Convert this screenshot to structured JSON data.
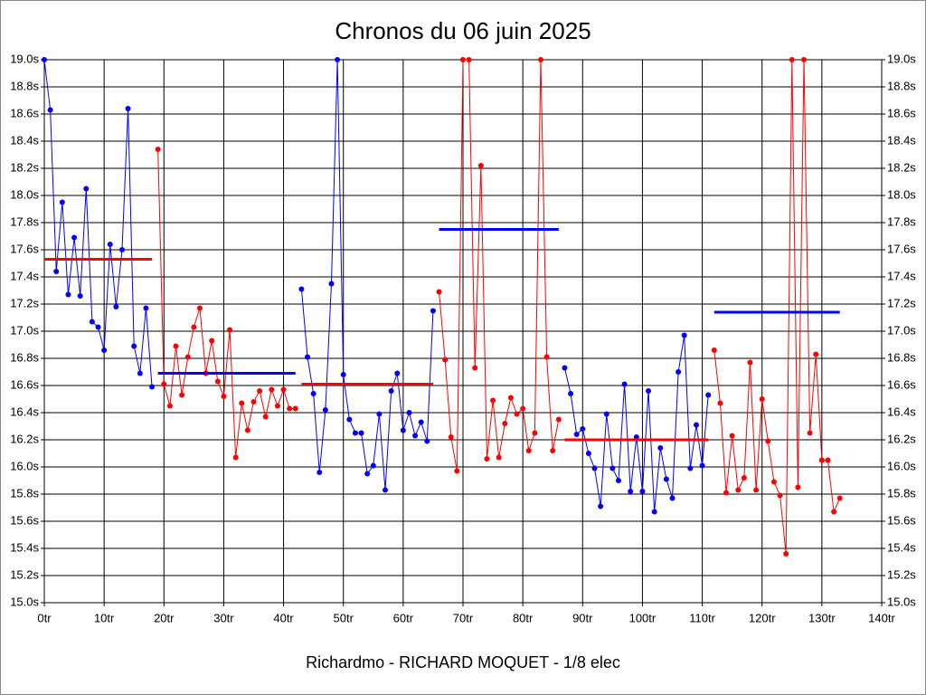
{
  "chart_data": {
    "type": "line",
    "title": "Chronos du 06 juin 2025",
    "footer": "Richardmo - RICHARD MOQUET - 1/8 elec",
    "xlim": [
      0,
      140
    ],
    "ylim": [
      15.0,
      19.0
    ],
    "grid": true,
    "xticks": [
      {
        "value": 0,
        "label": "0tr"
      },
      {
        "value": 10,
        "label": "10tr"
      },
      {
        "value": 20,
        "label": "20tr"
      },
      {
        "value": 30,
        "label": "30tr"
      },
      {
        "value": 40,
        "label": "40tr"
      },
      {
        "value": 50,
        "label": "50tr"
      },
      {
        "value": 60,
        "label": "60tr"
      },
      {
        "value": 70,
        "label": "70tr"
      },
      {
        "value": 80,
        "label": "80tr"
      },
      {
        "value": 90,
        "label": "90tr"
      },
      {
        "value": 100,
        "label": "100tr"
      },
      {
        "value": 110,
        "label": "110tr"
      },
      {
        "value": 120,
        "label": "120tr"
      },
      {
        "value": 130,
        "label": "130tr"
      },
      {
        "value": 140,
        "label": "140tr"
      }
    ],
    "yticks": [
      {
        "value": 15.0,
        "label": "15.0s"
      },
      {
        "value": 15.2,
        "label": "15.2s"
      },
      {
        "value": 15.4,
        "label": "15.4s"
      },
      {
        "value": 15.6,
        "label": "15.6s"
      },
      {
        "value": 15.8,
        "label": "15.8s"
      },
      {
        "value": 16.0,
        "label": "16.0s"
      },
      {
        "value": 16.2,
        "label": "16.2s"
      },
      {
        "value": 16.4,
        "label": "16.4s"
      },
      {
        "value": 16.6,
        "label": "16.6s"
      },
      {
        "value": 16.8,
        "label": "16.8s"
      },
      {
        "value": 17.0,
        "label": "17.0s"
      },
      {
        "value": 17.2,
        "label": "17.2s"
      },
      {
        "value": 17.4,
        "label": "17.4s"
      },
      {
        "value": 17.6,
        "label": "17.6s"
      },
      {
        "value": 17.8,
        "label": "17.8s"
      },
      {
        "value": 18.0,
        "label": "18.0s"
      },
      {
        "value": 18.2,
        "label": "18.2s"
      },
      {
        "value": 18.4,
        "label": "18.4s"
      },
      {
        "value": 18.6,
        "label": "18.6s"
      },
      {
        "value": 18.8,
        "label": "18.8s"
      },
      {
        "value": 19.0,
        "label": "19.0s"
      }
    ],
    "series": [
      {
        "color": "#0000ff",
        "mean": 17.53,
        "mean_color": "#ff0000",
        "x": [
          0,
          1,
          2,
          3,
          4,
          5,
          6,
          7,
          8,
          9,
          10,
          11,
          12,
          13,
          14,
          15,
          16,
          17,
          18
        ],
        "values": [
          19.0,
          18.63,
          17.44,
          17.95,
          17.27,
          17.69,
          17.26,
          18.05,
          17.07,
          17.03,
          16.86,
          17.64,
          17.18,
          17.6,
          18.64,
          16.89,
          16.69,
          17.17,
          16.59
        ]
      },
      {
        "color": "#ff0000",
        "mean": 16.69,
        "mean_color": "#0000ff",
        "x": [
          19,
          20,
          21,
          22,
          23,
          24,
          25,
          26,
          27,
          28,
          29,
          30,
          31,
          32,
          33,
          34,
          35,
          36,
          37,
          38,
          39,
          40,
          41,
          42
        ],
        "values": [
          18.34,
          16.61,
          16.45,
          16.89,
          16.53,
          16.81,
          17.03,
          17.17,
          16.69,
          16.93,
          16.63,
          16.52,
          17.01,
          16.07,
          16.47,
          16.27,
          16.48,
          16.56,
          16.37,
          16.57,
          16.45,
          16.57,
          16.43,
          16.43
        ]
      },
      {
        "color": "#0000ff",
        "mean": 16.61,
        "mean_color": "#ff0000",
        "x": [
          43,
          44,
          45,
          46,
          47,
          48,
          49,
          50,
          51,
          52,
          53,
          54,
          55,
          56,
          57,
          58,
          59,
          60,
          61,
          62,
          63,
          64,
          65
        ],
        "values": [
          17.31,
          16.81,
          16.54,
          15.96,
          16.42,
          17.35,
          19.0,
          16.68,
          16.35,
          16.25,
          16.25,
          15.95,
          16.01,
          16.39,
          15.83,
          16.56,
          16.69,
          16.27,
          16.4,
          16.23,
          16.33,
          16.19,
          17.15
        ]
      },
      {
        "color": "#ff0000",
        "mean": 17.75,
        "mean_color": "#0000ff",
        "x": [
          66,
          67,
          68,
          69,
          70,
          71,
          72,
          73,
          74,
          75,
          76,
          77,
          78,
          79,
          80,
          81,
          82,
          83,
          84,
          85,
          86
        ],
        "values": [
          17.29,
          16.79,
          16.22,
          15.97,
          19.0,
          19.0,
          16.73,
          18.22,
          16.06,
          16.49,
          16.07,
          16.32,
          16.51,
          16.39,
          16.43,
          16.12,
          16.25,
          19.0,
          16.81,
          16.12,
          16.35
        ]
      },
      {
        "color": "#0000ff",
        "mean": 16.2,
        "mean_color": "#ff0000",
        "x": [
          87,
          88,
          89,
          90,
          91,
          92,
          93,
          94,
          95,
          96,
          97,
          98,
          99,
          100,
          101,
          102,
          103,
          104,
          105,
          106,
          107,
          108,
          109,
          110,
          111
        ],
        "values": [
          16.73,
          16.54,
          16.24,
          16.28,
          16.1,
          15.99,
          15.71,
          16.39,
          15.99,
          15.9,
          16.61,
          15.82,
          16.22,
          15.82,
          16.56,
          15.67,
          16.14,
          15.91,
          15.77,
          16.7,
          16.97,
          15.99,
          16.31,
          16.01,
          16.53
        ]
      },
      {
        "color": "#ff0000",
        "mean": 17.14,
        "mean_color": "#0000ff",
        "x": [
          112,
          113,
          114,
          115,
          116,
          117,
          118,
          119,
          120,
          121,
          122,
          123,
          124,
          125,
          126,
          127,
          128,
          129,
          130,
          131,
          132,
          133
        ],
        "values": [
          16.86,
          16.47,
          15.81,
          16.23,
          15.83,
          15.92,
          16.77,
          15.83,
          16.5,
          16.19,
          15.89,
          15.79,
          15.36,
          19.0,
          15.85,
          19.0,
          16.25,
          16.83,
          16.05,
          16.05,
          15.67,
          15.77
        ]
      }
    ]
  }
}
